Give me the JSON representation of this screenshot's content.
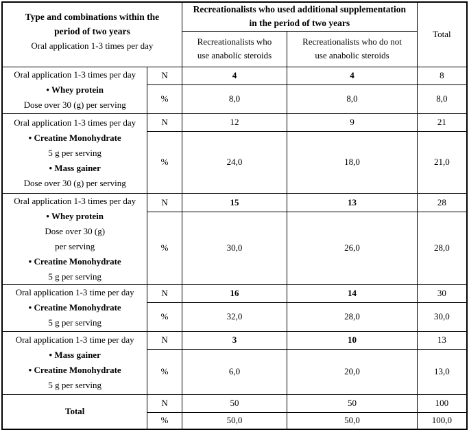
{
  "header": {
    "type_title": "Type and combinations within the\nperiod of two years",
    "type_subtitle": "Oral application 1-3 times per day",
    "group_title": "Recreationalists who used additional supplementation\nin the period of two years",
    "col_a": "Recreationalists who\nuse anabolic steroids",
    "col_b": "Recreationalists who do not\nuse anabolic steroids",
    "total_label": "Total",
    "stat_n": "N",
    "stat_pct": "%"
  },
  "rows": [
    {
      "label_lines": [
        {
          "text": "Oral application 1-3 times per day",
          "bold": false
        },
        {
          "text": "• Whey protein",
          "bold": true
        },
        {
          "text": "Dose over 30 (g) per serving",
          "bold": false
        }
      ],
      "center_label": false,
      "n": {
        "a": "4",
        "b": "4",
        "total": "8",
        "ab_bold": true
      },
      "pct": {
        "a": "8,0",
        "b": "8,0",
        "total": "8,0"
      }
    },
    {
      "label_lines": [
        {
          "text": "Oral application 1-3 times per day",
          "bold": false
        },
        {
          "text": "• Creatine Monohydrate",
          "bold": true
        },
        {
          "text": "5 g per serving",
          "bold": false
        },
        {
          "text": "• Mass gainer",
          "bold": true
        },
        {
          "text": "Dose over 30 (g) per serving",
          "bold": false
        }
      ],
      "center_label": false,
      "n": {
        "a": "12",
        "b": "9",
        "total": "21",
        "ab_bold": false
      },
      "pct": {
        "a": "24,0",
        "b": "18,0",
        "total": "21,0"
      }
    },
    {
      "label_lines": [
        {
          "text": "Oral application 1-3 times per day",
          "bold": false
        },
        {
          "text": "• Whey protein",
          "bold": true
        },
        {
          "text": "Dose over 30 (g)",
          "bold": false
        },
        {
          "text": "per serving",
          "bold": false
        },
        {
          "text": "• Creatine Monohydrate",
          "bold": true
        },
        {
          "text": "5 g per serving",
          "bold": false
        }
      ],
      "center_label": false,
      "n": {
        "a": "15",
        "b": "13",
        "total": "28",
        "ab_bold": true
      },
      "pct": {
        "a": "30,0",
        "b": "26,0",
        "total": "28,0"
      }
    },
    {
      "label_lines": [
        {
          "text": "Oral application 1-3 time per day",
          "bold": false
        },
        {
          "text": "• Creatine Monohydrate",
          "bold": true
        },
        {
          "text": "5 g per serving",
          "bold": false
        }
      ],
      "center_label": false,
      "n": {
        "a": "16",
        "b": "14",
        "total": "30",
        "ab_bold": true
      },
      "pct": {
        "a": "32,0",
        "b": "28,0",
        "total": "30,0"
      }
    },
    {
      "label_lines": [
        {
          "text": "Oral application 1-3 time per day",
          "bold": false
        },
        {
          "text": "• Mass gainer",
          "bold": true
        },
        {
          "text": "• Creatine Monohydrate",
          "bold": true
        },
        {
          "text": "5 g per serving",
          "bold": false
        }
      ],
      "center_label": false,
      "n": {
        "a": "3",
        "b": "10",
        "total": "13",
        "ab_bold": true
      },
      "pct": {
        "a": "6,0",
        "b": "20,0",
        "total": "13,0"
      }
    },
    {
      "label_lines": [
        {
          "text": "Total",
          "bold": true
        }
      ],
      "center_label": true,
      "n": {
        "a": "50",
        "b": "50",
        "total": "100",
        "ab_bold": false
      },
      "pct": {
        "a": "50,0",
        "b": "50,0",
        "total": "100,0"
      }
    }
  ]
}
